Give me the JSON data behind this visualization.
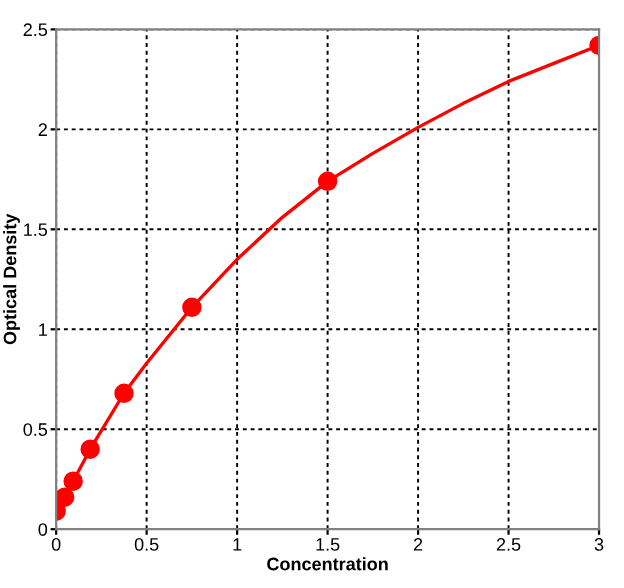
{
  "chart_data": {
    "type": "scatter",
    "xlabel": "Concentration",
    "ylabel": "Optical Density",
    "x": [
      0,
      0.047,
      0.094,
      0.188,
      0.375,
      0.75,
      1.5,
      3
    ],
    "series": [
      {
        "color": "#ff0000",
        "marker": "circle",
        "values": [
          0.09,
          0.16,
          0.24,
          0.4,
          0.68,
          1.11,
          1.74,
          2.42
        ]
      },
      {
        "type": "line",
        "color": "#ff0000",
        "marker": "none",
        "line_style": "solid",
        "x": [
          0,
          0.047,
          0.094,
          0.188,
          0.375,
          0.5,
          0.75,
          1,
          1.25,
          1.5,
          1.75,
          2,
          2.25,
          2.5,
          2.75,
          3
        ],
        "values": [
          0.09,
          0.16,
          0.24,
          0.4,
          0.68,
          0.83,
          1.11,
          1.35,
          1.56,
          1.74,
          1.88,
          2.01,
          2.13,
          2.24,
          2.33,
          2.42
        ]
      }
    ],
    "grid": true,
    "xlim": [
      0,
      3
    ],
    "ylim": [
      0,
      2.5
    ],
    "xticks": [
      0,
      0.5,
      1,
      1.5,
      2,
      2.5,
      3
    ],
    "yticks": [
      0,
      0.5,
      1,
      1.5,
      2,
      2.5
    ]
  }
}
